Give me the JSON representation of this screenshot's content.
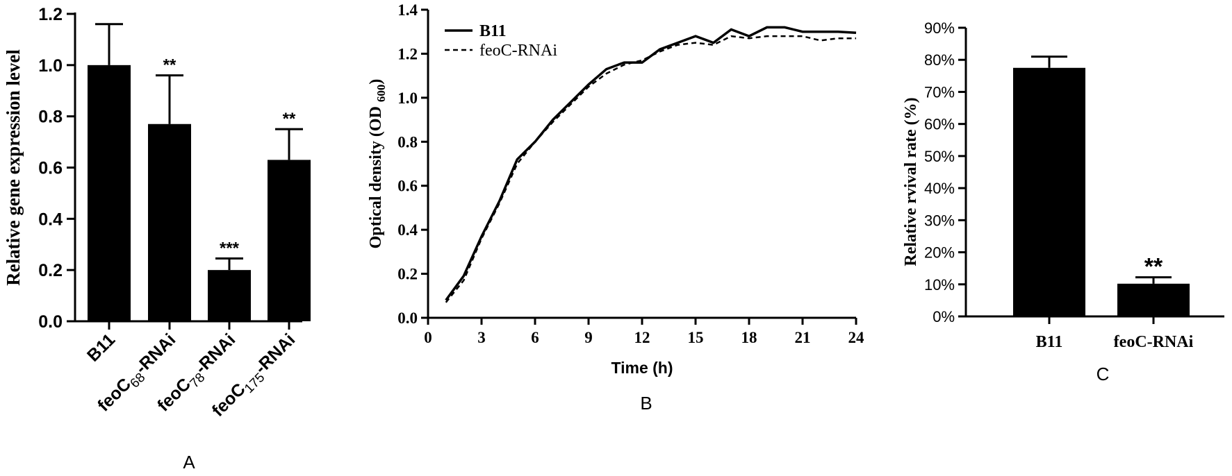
{
  "chart_data": [
    {
      "panel": "A",
      "type": "bar",
      "ylabel": "Relative gene expression level",
      "ylim": [
        0,
        1.2
      ],
      "yticks": [
        "0.0",
        "0.2",
        "0.4",
        "0.6",
        "0.8",
        "1.0",
        "1.2"
      ],
      "categories": [
        {
          "base": "B11",
          "sub": "",
          "suffix": ""
        },
        {
          "base": "feoC",
          "sub": "68",
          "suffix": "-RNAi"
        },
        {
          "base": "feoC",
          "sub": "78",
          "suffix": "-RNAi"
        },
        {
          "base": "feoC",
          "sub": "175",
          "suffix": "-RNAi"
        }
      ],
      "values": [
        1.0,
        0.77,
        0.2,
        0.63
      ],
      "errors": [
        0.16,
        0.19,
        0.045,
        0.12
      ],
      "significance": [
        "",
        "**",
        "***",
        "**"
      ]
    },
    {
      "panel": "B",
      "type": "line",
      "xlabel": "Time (h)",
      "ylabel": "Optical density (OD",
      "ylabel_sub": "600",
      "ylabel_close": ")",
      "xlim": [
        0,
        24
      ],
      "ylim": [
        0,
        1.4
      ],
      "xticks": [
        "0",
        "3",
        "6",
        "9",
        "12",
        "15",
        "18",
        "21",
        "24"
      ],
      "yticks": [
        "0.0",
        "0.2",
        "0.4",
        "0.6",
        "0.8",
        "1.0",
        "1.2",
        "1.4"
      ],
      "x": [
        1,
        2,
        3,
        4,
        5,
        6,
        7,
        8,
        9,
        10,
        11,
        12,
        13,
        14,
        15,
        16,
        17,
        18,
        19,
        20,
        21,
        22,
        23,
        24
      ],
      "series": [
        {
          "name": "B11",
          "style": "solid",
          "values": [
            0.08,
            0.19,
            0.37,
            0.53,
            0.72,
            0.8,
            0.9,
            0.98,
            1.06,
            1.13,
            1.16,
            1.16,
            1.22,
            1.25,
            1.28,
            1.25,
            1.31,
            1.28,
            1.32,
            1.32,
            1.3,
            1.3,
            1.3,
            1.295
          ]
        },
        {
          "name": "feoC-RNAi",
          "style": "dashed",
          "values": [
            0.07,
            0.17,
            0.36,
            0.52,
            0.7,
            0.8,
            0.89,
            0.97,
            1.05,
            1.11,
            1.15,
            1.17,
            1.21,
            1.24,
            1.25,
            1.24,
            1.28,
            1.27,
            1.28,
            1.28,
            1.28,
            1.26,
            1.27,
            1.27
          ]
        }
      ]
    },
    {
      "panel": "C",
      "type": "bar",
      "ylabel": "Relative rvival rate (%)",
      "ylim": [
        0,
        90
      ],
      "yticks": [
        "0%",
        "10%",
        "20%",
        "30%",
        "40%",
        "50%",
        "60%",
        "70%",
        "80%",
        "90%"
      ],
      "categories": [
        "B11",
        "feoC-RNAi"
      ],
      "values": [
        77.5,
        10.2
      ],
      "errors": [
        3.5,
        2.0
      ],
      "significance": [
        "",
        "**"
      ]
    }
  ],
  "panel_labels": [
    "A",
    "B",
    "C"
  ]
}
